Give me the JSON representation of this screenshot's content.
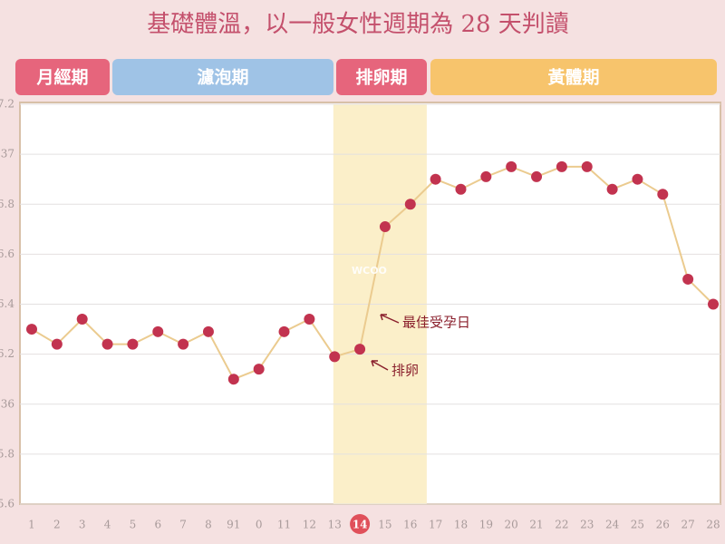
{
  "chart_data": {
    "type": "line",
    "title": "基礎體溫，以一般女性週期為 28 天判讀",
    "phases": [
      {
        "label": "月經期",
        "color": "#e6657c"
      },
      {
        "label": "濾泡期",
        "color": "#9fc3e6"
      },
      {
        "label": "排卵期",
        "color": "#e6657c"
      },
      {
        "label": "黃體期",
        "color": "#f7c46c"
      }
    ],
    "categories": [
      "1",
      "2",
      "3",
      "4",
      "5",
      "6",
      "7",
      "8",
      "91",
      "0",
      "11",
      "12",
      "13",
      "14",
      "15",
      "16",
      "17",
      "18",
      "19",
      "20",
      "21",
      "22",
      "23",
      "24",
      "25",
      "26",
      "27",
      "28"
    ],
    "values": [
      36.3,
      36.24,
      36.34,
      36.24,
      36.24,
      36.29,
      36.24,
      36.29,
      36.1,
      36.14,
      36.29,
      36.34,
      36.19,
      36.22,
      36.71,
      36.8,
      36.9,
      36.86,
      36.91,
      36.95,
      36.91,
      36.95,
      36.95,
      36.86,
      36.9,
      36.84,
      36.5,
      36.4
    ],
    "line_color": "#ebcb8f",
    "marker_color": "#c2334f",
    "highlight_index": 13,
    "highlight_color": "#fbefc9",
    "ylim": [
      35.6,
      37.2
    ],
    "yticks": [
      {
        "value": 35.6,
        "label": "5.6"
      },
      {
        "value": 35.8,
        "label": "5.8"
      },
      36,
      {
        "value": 36.2,
        "label": "6.2"
      },
      {
        "value": 36.4,
        "label": "6.4"
      },
      {
        "value": 36.6,
        "label": "6.6"
      },
      {
        "value": 36.8,
        "label": "6.8"
      },
      37,
      {
        "value": 37.2,
        "label": "7.2"
      }
    ],
    "grid": true,
    "annotations": [
      "最佳受孕日",
      "排卵"
    ],
    "watermark": "WCOO"
  }
}
